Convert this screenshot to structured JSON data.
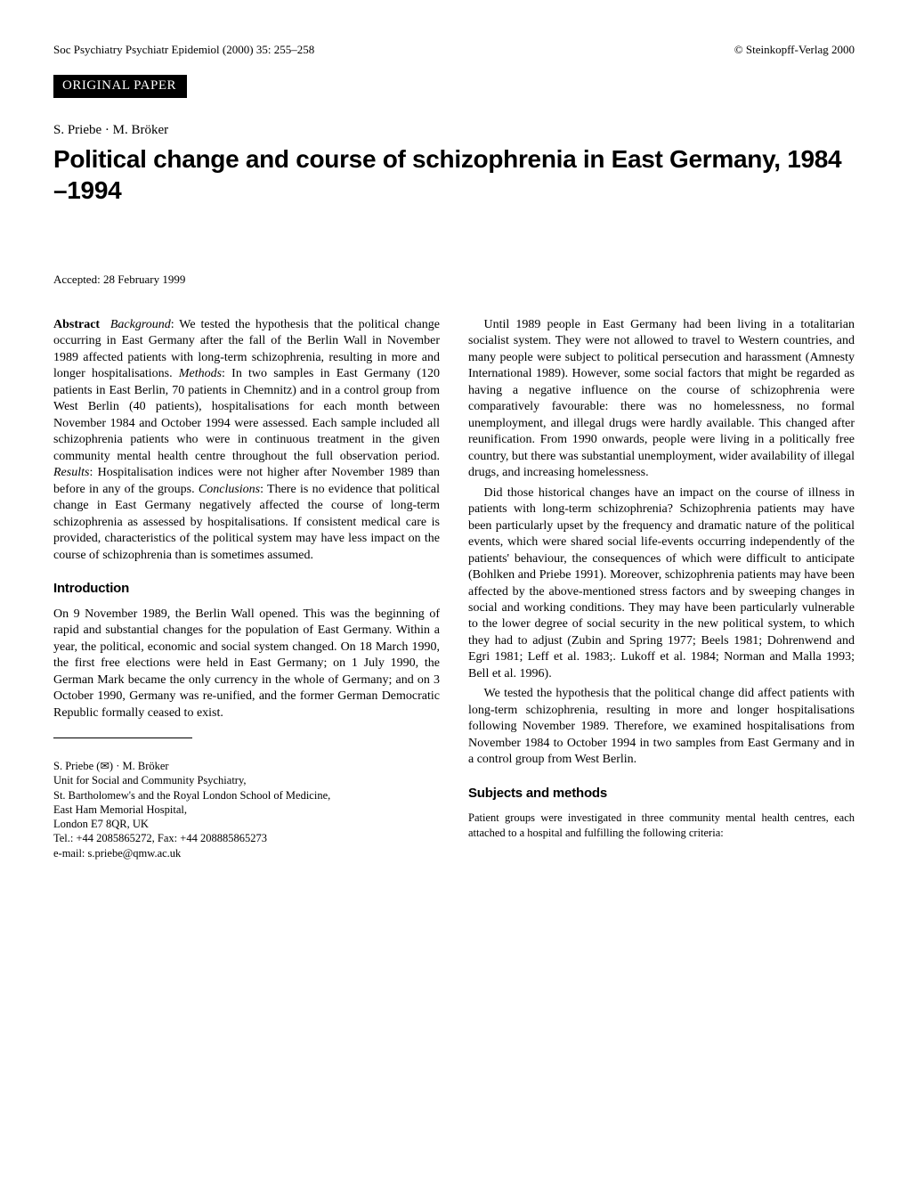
{
  "header": {
    "journal_ref": "Soc Psychiatry Psychiatr Epidemiol (2000) 35: 255–258",
    "copyright": "© Steinkopff-Verlag 2000",
    "section_badge": "ORIGINAL PAPER"
  },
  "authors_line": "S. Priebe · M. Bröker",
  "title": "Political change and course of schizophrenia in East Germany, 1984 –1994",
  "accepted": "Accepted: 28 February 1999",
  "abstract": {
    "label": "Abstract",
    "bg_label": "Background",
    "bg_text": ": We tested the hypothesis that the political change occurring in East Germany after the fall of the Berlin Wall in November 1989 affected patients with long-term schizophrenia, resulting in more and longer hospitalisations. ",
    "methods_label": "Methods",
    "methods_text": ": In two samples in East Germany (120 patients in East Berlin, 70 patients in Chemnitz) and in a control group from West Berlin (40 patients), hospitalisations for each month between November 1984 and October 1994 were assessed. Each sample included all schizophrenia patients who were in continuous treatment in the given community mental health centre throughout the full observation period. ",
    "results_label": "Results",
    "results_text": ": Hospitalisation indices were not higher after November 1989 than before in any of the groups. ",
    "concl_label": "Conclusions",
    "concl_text": ": There is no evidence that political change in East Germany negatively affected the course of long-term schizophrenia as assessed by hospitalisations. If consistent medical care is provided, characteristics of the political system may have less impact on the course of schizophrenia than is sometimes assumed."
  },
  "sections": {
    "intro_heading": "Introduction",
    "intro_p1": "On 9 November 1989, the Berlin Wall opened. This was the beginning of rapid and substantial changes for the population of East Germany. Within a year, the political, economic and social system changed. On 18 March 1990, the first free elections were held in East Germany; on 1 July 1990, the German Mark became the only currency in the whole of Germany; and on 3 October 1990, Germany was re-unified, and the former German Democratic Republic formally ceased to exist.",
    "intro_p2": "Until 1989 people in East Germany had been living in a totalitarian socialist system. They were not allowed to travel to Western countries, and many people were subject to political persecution and harassment (Amnesty International 1989). However, some social factors that might be regarded as having a negative influence on the course of schizophrenia were comparatively favourable: there was no homelessness, no formal unemployment, and illegal drugs were hardly available. This changed after reunification. From 1990 onwards, people were living in a politically free country, but there was substantial unemployment, wider availability of illegal drugs, and increasing homelessness.",
    "intro_p3": "Did those historical changes have an impact on the course of illness in patients with long-term schizophrenia? Schizophrenia patients may have been particularly upset by the frequency and dramatic nature of the political events, which were shared social life-events occurring independently of the patients' behaviour, the consequences of which were difficult to anticipate (Bohlken and Priebe 1991). Moreover, schizophrenia patients may have been affected by the above-mentioned stress factors and by sweeping changes in social and working conditions. They may have been particularly vulnerable to the lower degree of social security in the new political system, to which they had to adjust (Zubin and Spring 1977; Beels 1981; Dohrenwend and Egri 1981; Leff et al. 1983;. Lukoff et al. 1984; Norman and Malla 1993; Bell et al. 1996).",
    "intro_p4": "We tested the hypothesis that the political change did affect patients with long-term schizophrenia, resulting in more and longer hospitalisations following November 1989. Therefore, we examined hospitalisations from November 1984 to October 1994 in two samples from East Germany and in a control group from West Berlin.",
    "subjects_heading": "Subjects and methods",
    "subjects_p1": "Patient groups were investigated in three community mental health centres, each attached to a hospital and fulfilling the following criteria:"
  },
  "affiliation": {
    "line1_prefix": "S. Priebe (",
    "line1_suffix": ") · M. Bröker",
    "line2": "Unit for Social and Community Psychiatry,",
    "line3": "St. Bartholomew's and the Royal London School of Medicine,",
    "line4": "East Ham Memorial Hospital,",
    "line5": "London E7 8QR, UK",
    "line6": "Tel.: +44 2085865272, Fax: +44 208885865273",
    "line7": "e-mail: s.priebe@qmw.ac.uk"
  }
}
